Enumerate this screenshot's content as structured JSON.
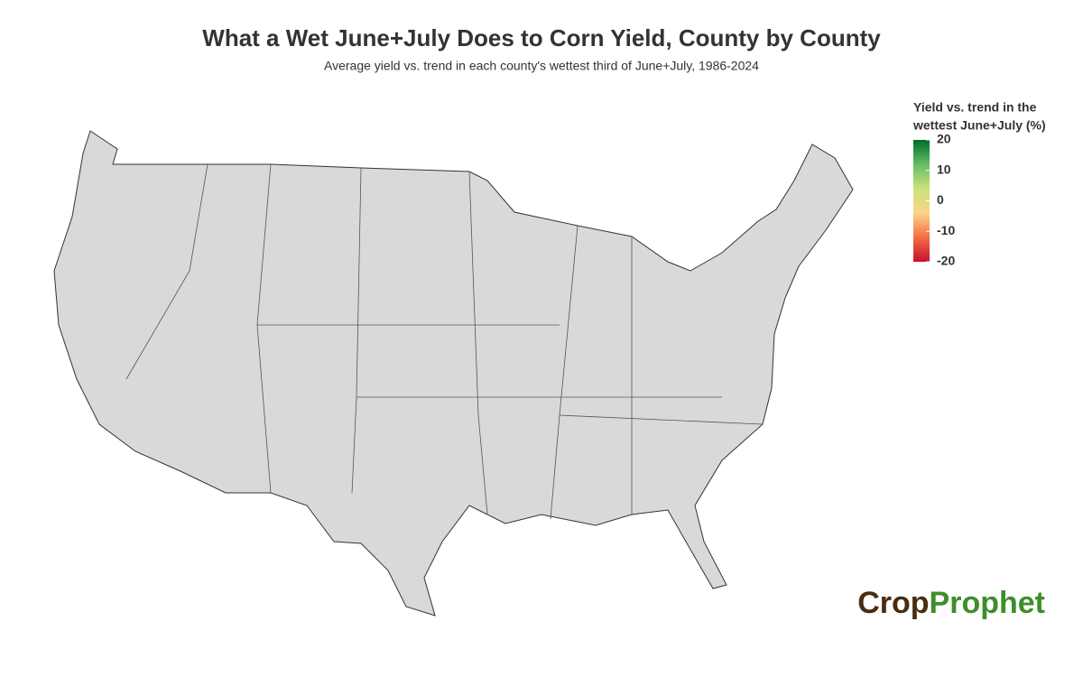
{
  "chart_data": {
    "type": "choropleth",
    "title": "What a Wet June+July Does to Corn Yield, County by County",
    "subtitle": "Average yield vs. trend in each county's wettest third of June+July, 1986-2024",
    "legend_title": [
      "Yield vs. trend in the",
      "wettest June+July (%)"
    ],
    "scale_lim": [
      -20,
      20
    ],
    "scale_ticks": [
      20,
      10,
      0,
      -10,
      -20
    ],
    "scale_colors": [
      "#c8102e",
      "#f46d43",
      "#fdd38a",
      "#c9e27a",
      "#66bd63",
      "#006d2c"
    ],
    "logo": [
      "Crop",
      "Prophet"
    ]
  }
}
